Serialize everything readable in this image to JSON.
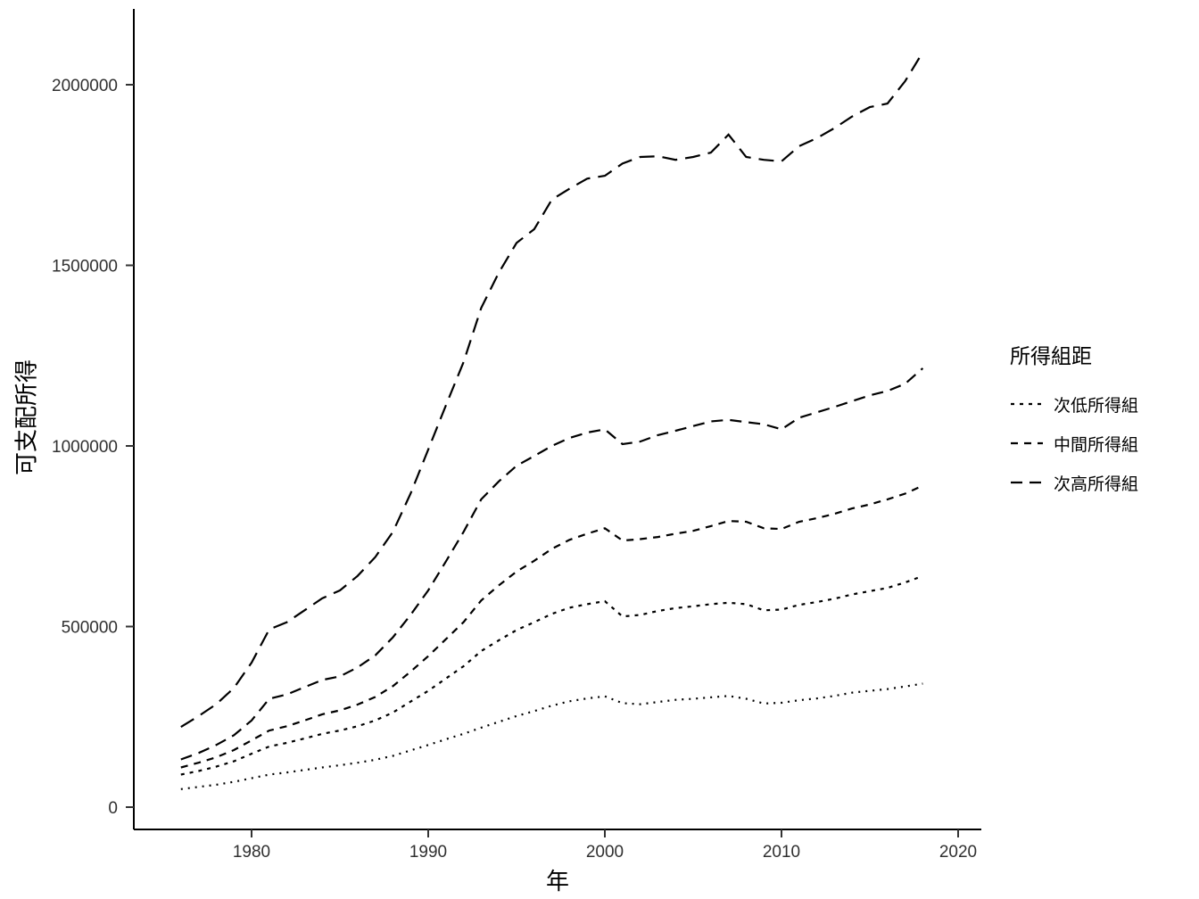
{
  "chart_data": {
    "type": "line",
    "title": "",
    "xlabel": "年",
    "ylabel": "可支配所得",
    "x_ticks": [
      1980,
      1990,
      2000,
      2010,
      2020
    ],
    "y_ticks": [
      0,
      500000,
      1000000,
      1500000,
      2000000
    ],
    "xlim": [
      1975,
      2021
    ],
    "ylim": [
      0,
      2200000
    ],
    "grid": false,
    "background": "#FFFFFF",
    "line_color": "#000000",
    "tick_label_color": "#303030",
    "legend": {
      "title": "所得組距",
      "position": "right",
      "entries": [
        {
          "label": "次低所得組",
          "dash": "4 6"
        },
        {
          "label": "中間所得組",
          "dash": "8 7"
        },
        {
          "label": "次高所得組",
          "dash": "13 8"
        }
      ]
    },
    "x": [
      1976,
      1977,
      1978,
      1979,
      1980,
      1981,
      1982,
      1983,
      1984,
      1985,
      1986,
      1987,
      1988,
      1989,
      1990,
      1991,
      1992,
      1993,
      1994,
      1995,
      1996,
      1997,
      1998,
      1999,
      2000,
      2001,
      2002,
      2003,
      2004,
      2005,
      2006,
      2007,
      2008,
      2009,
      2010,
      2011,
      2012,
      2013,
      2014,
      2015,
      2016,
      2017,
      2018
    ],
    "series": [
      {
        "label": "",
        "in_legend": false,
        "dash": "2 6",
        "values": [
          50000,
          56000,
          62000,
          70000,
          80000,
          90000,
          96000,
          103000,
          110000,
          116000,
          123000,
          131000,
          142000,
          157000,
          172000,
          188000,
          203000,
          220000,
          236000,
          252000,
          266000,
          281000,
          293000,
          301000,
          307000,
          288000,
          285000,
          291000,
          297000,
          300000,
          304000,
          308000,
          300000,
          287000,
          289000,
          296000,
          301000,
          308000,
          317000,
          322000,
          327000,
          334000,
          342000
        ]
      },
      {
        "label": "次低所得組",
        "in_legend": true,
        "dash": "4 6",
        "values": [
          90000,
          100000,
          112000,
          127000,
          148000,
          168000,
          178000,
          190000,
          203000,
          212000,
          224000,
          240000,
          262000,
          292000,
          322000,
          356000,
          390000,
          432000,
          462000,
          490000,
          512000,
          535000,
          552000,
          562000,
          570000,
          528000,
          532000,
          543000,
          551000,
          556000,
          562000,
          566000,
          562000,
          545000,
          547000,
          560000,
          568000,
          577000,
          589000,
          598000,
          607000,
          622000,
          640000
        ]
      },
      {
        "label": "中間所得組",
        "in_legend": true,
        "dash": "8 7",
        "values": [
          110000,
          123000,
          138000,
          158000,
          185000,
          212000,
          224000,
          240000,
          257000,
          268000,
          284000,
          305000,
          335000,
          375000,
          418000,
          465000,
          512000,
          572000,
          614000,
          652000,
          682000,
          715000,
          740000,
          757000,
          772000,
          738000,
          742000,
          748000,
          757000,
          765000,
          778000,
          792000,
          790000,
          772000,
          770000,
          790000,
          800000,
          812000,
          827000,
          838000,
          852000,
          868000,
          890000
        ]
      },
      {
        "label": "次高所得組",
        "in_legend": true,
        "dash": "13 8",
        "values": [
          132000,
          150000,
          172000,
          199000,
          240000,
          300000,
          312000,
          332000,
          352000,
          362000,
          387000,
          420000,
          470000,
          532000,
          600000,
          680000,
          762000,
          852000,
          902000,
          945000,
          972000,
          1000000,
          1022000,
          1037000,
          1046000,
          1005000,
          1012000,
          1030000,
          1042000,
          1055000,
          1068000,
          1072000,
          1066000,
          1060000,
          1046000,
          1078000,
          1093000,
          1108000,
          1124000,
          1140000,
          1152000,
          1172000,
          1215000
        ]
      },
      {
        "label": "",
        "in_legend": false,
        "dash": "17 9",
        "values": [
          222000,
          252000,
          285000,
          330000,
          400000,
          492000,
          512000,
          545000,
          578000,
          600000,
          640000,
          692000,
          762000,
          868000,
          990000,
          1112000,
          1232000,
          1382000,
          1480000,
          1562000,
          1600000,
          1682000,
          1712000,
          1740000,
          1748000,
          1782000,
          1800000,
          1802000,
          1792000,
          1800000,
          1812000,
          1862000,
          1800000,
          1792000,
          1788000,
          1830000,
          1852000,
          1880000,
          1912000,
          1938000,
          1948000,
          2010000,
          2090000
        ]
      }
    ]
  }
}
